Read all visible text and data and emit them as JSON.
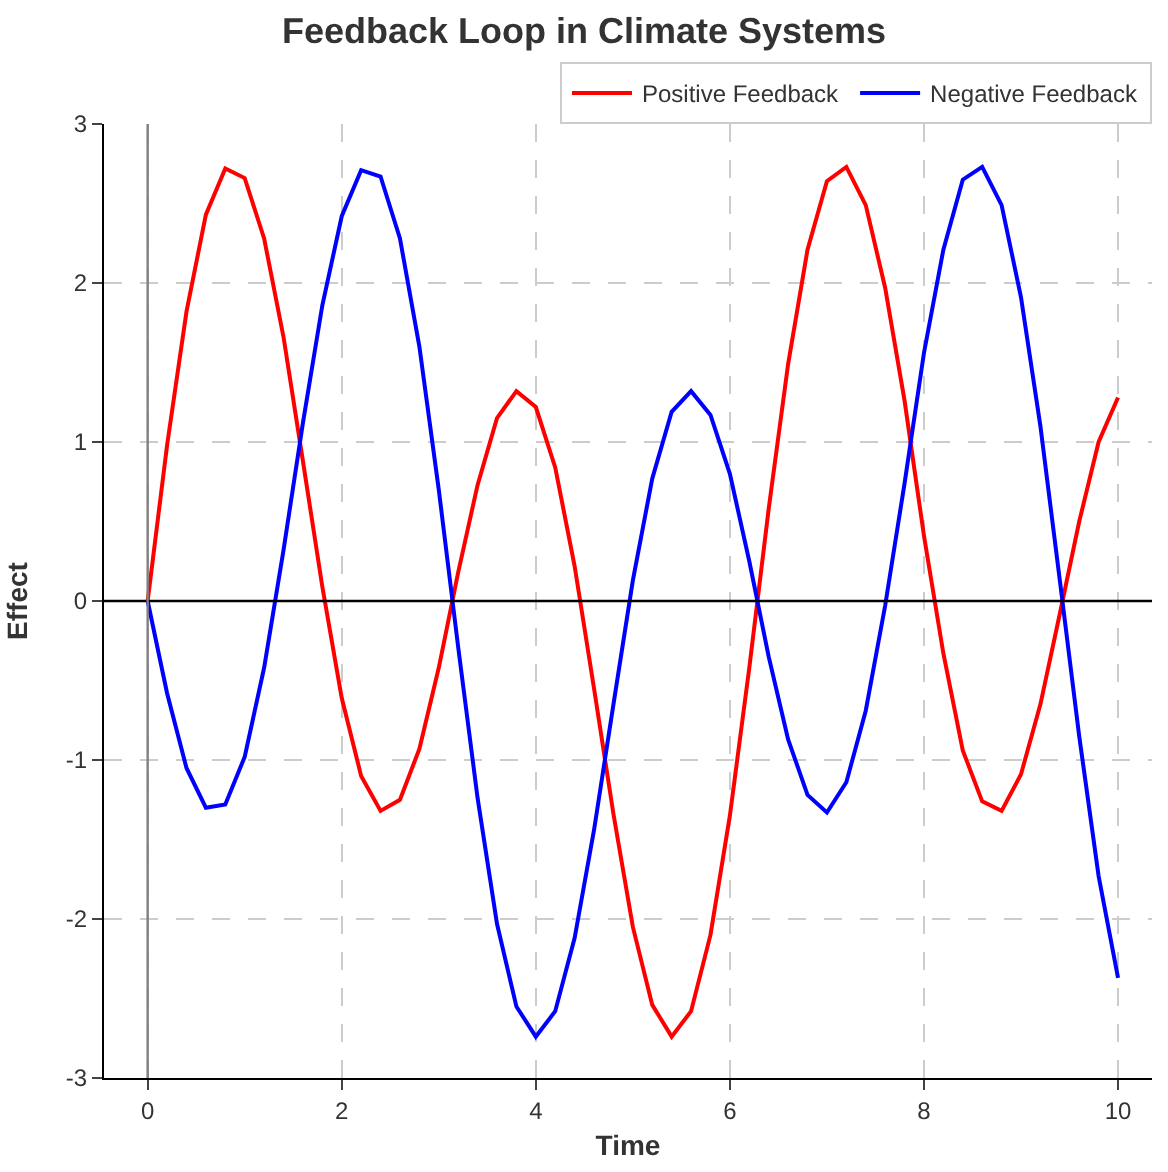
{
  "chart_data": {
    "type": "line",
    "title": "Feedback Loop in Climate Systems",
    "xlabel": "Time",
    "ylabel": "Effect",
    "x": [
      0,
      0.2,
      0.4,
      0.6,
      0.8,
      1.0,
      1.2,
      1.4,
      1.6,
      1.8,
      2.0,
      2.2,
      2.4,
      2.6,
      2.8,
      3.0,
      3.2,
      3.4,
      3.6,
      3.8,
      4.0,
      4.2,
      4.4,
      4.6,
      4.8,
      5.0,
      5.2,
      5.4,
      5.6,
      5.8,
      6.0,
      6.2,
      6.4,
      6.6,
      6.8,
      7.0,
      7.2,
      7.4,
      7.6,
      7.8,
      8.0,
      8.2,
      8.4,
      8.6,
      8.8,
      9.0,
      9.2,
      9.4,
      9.6,
      9.8,
      10
    ],
    "series": [
      {
        "name": "Positive Feedback",
        "color": "#ff0000",
        "values": [
          0,
          0.98,
          1.82,
          2.43,
          2.72,
          2.66,
          2.28,
          1.66,
          0.88,
          0.09,
          -0.61,
          -1.1,
          -1.32,
          -1.25,
          -0.93,
          -0.42,
          0.18,
          0.73,
          1.15,
          1.32,
          1.22,
          0.84,
          0.22,
          -0.55,
          -1.34,
          -2.05,
          -2.54,
          -2.74,
          -2.58,
          -2.1,
          -1.35,
          -0.42,
          0.58,
          1.49,
          2.21,
          2.64,
          2.73,
          2.49,
          1.97,
          1.26,
          0.41,
          -0.33,
          -0.94,
          -1.26,
          -1.32,
          -1.09,
          -0.65,
          -0.08,
          0.5,
          1.0,
          1.28
        ]
      },
      {
        "name": "Negative Feedback",
        "color": "#0000ff",
        "values": [
          0,
          -0.58,
          -1.05,
          -1.3,
          -1.28,
          -0.98,
          -0.42,
          0.32,
          1.12,
          1.86,
          2.42,
          2.71,
          2.67,
          2.28,
          1.6,
          0.7,
          -0.29,
          -1.24,
          -2.03,
          -2.55,
          -2.74,
          -2.58,
          -2.12,
          -1.44,
          -0.65,
          0.13,
          0.77,
          1.19,
          1.32,
          1.17,
          0.8,
          0.25,
          -0.35,
          -0.87,
          -1.22,
          -1.33,
          -1.14,
          -0.69,
          -0.03,
          0.74,
          1.56,
          2.21,
          2.65,
          2.73,
          2.49,
          1.91,
          1.1,
          0.13,
          -0.85,
          -1.73,
          -2.37
        ]
      }
    ],
    "xlim": [
      -0.45,
      10.35
    ],
    "ylim": [
      -3,
      3
    ],
    "xticks": [
      0,
      2,
      4,
      6,
      8,
      10
    ],
    "yticks": [
      -3,
      -2,
      -1,
      0,
      1,
      2,
      3
    ],
    "ref_lines": [
      {
        "axis": "y",
        "value": 0,
        "color": "#000000"
      },
      {
        "axis": "x",
        "value": 0,
        "color": "#808080"
      }
    ],
    "grid": true,
    "legend": "top right",
    "line_style": "solid",
    "marker": "none"
  }
}
